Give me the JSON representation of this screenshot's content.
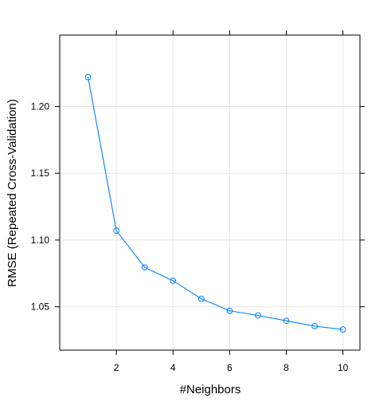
{
  "chart_data": {
    "type": "line",
    "xlabel": "#Neighbors",
    "ylabel": "RMSE (Repeated Cross-Validation)",
    "x": [
      1,
      2,
      3,
      4,
      5,
      6,
      7,
      8,
      9,
      10
    ],
    "series": [
      {
        "values": [
          1.222,
          1.107,
          1.0795,
          1.0695,
          1.056,
          1.047,
          1.0435,
          1.0395,
          1.0355,
          1.033
        ]
      }
    ],
    "xlim": [
      0.0,
      10.6
    ],
    "ylim": [
      1.0175,
      1.2535
    ],
    "x_ticks": [
      2,
      4,
      6,
      8,
      10
    ],
    "x_tick_labels": [
      "2",
      "4",
      "6",
      "8",
      "10"
    ],
    "y_ticks": [
      1.05,
      1.1,
      1.15,
      1.2
    ],
    "y_tick_labels": [
      "1.05",
      "1.10",
      "1.15",
      "1.20"
    ],
    "grid": true,
    "colors": {
      "series": "#0080ff",
      "grid": "#e6e6e6",
      "frame": "#000000"
    }
  }
}
